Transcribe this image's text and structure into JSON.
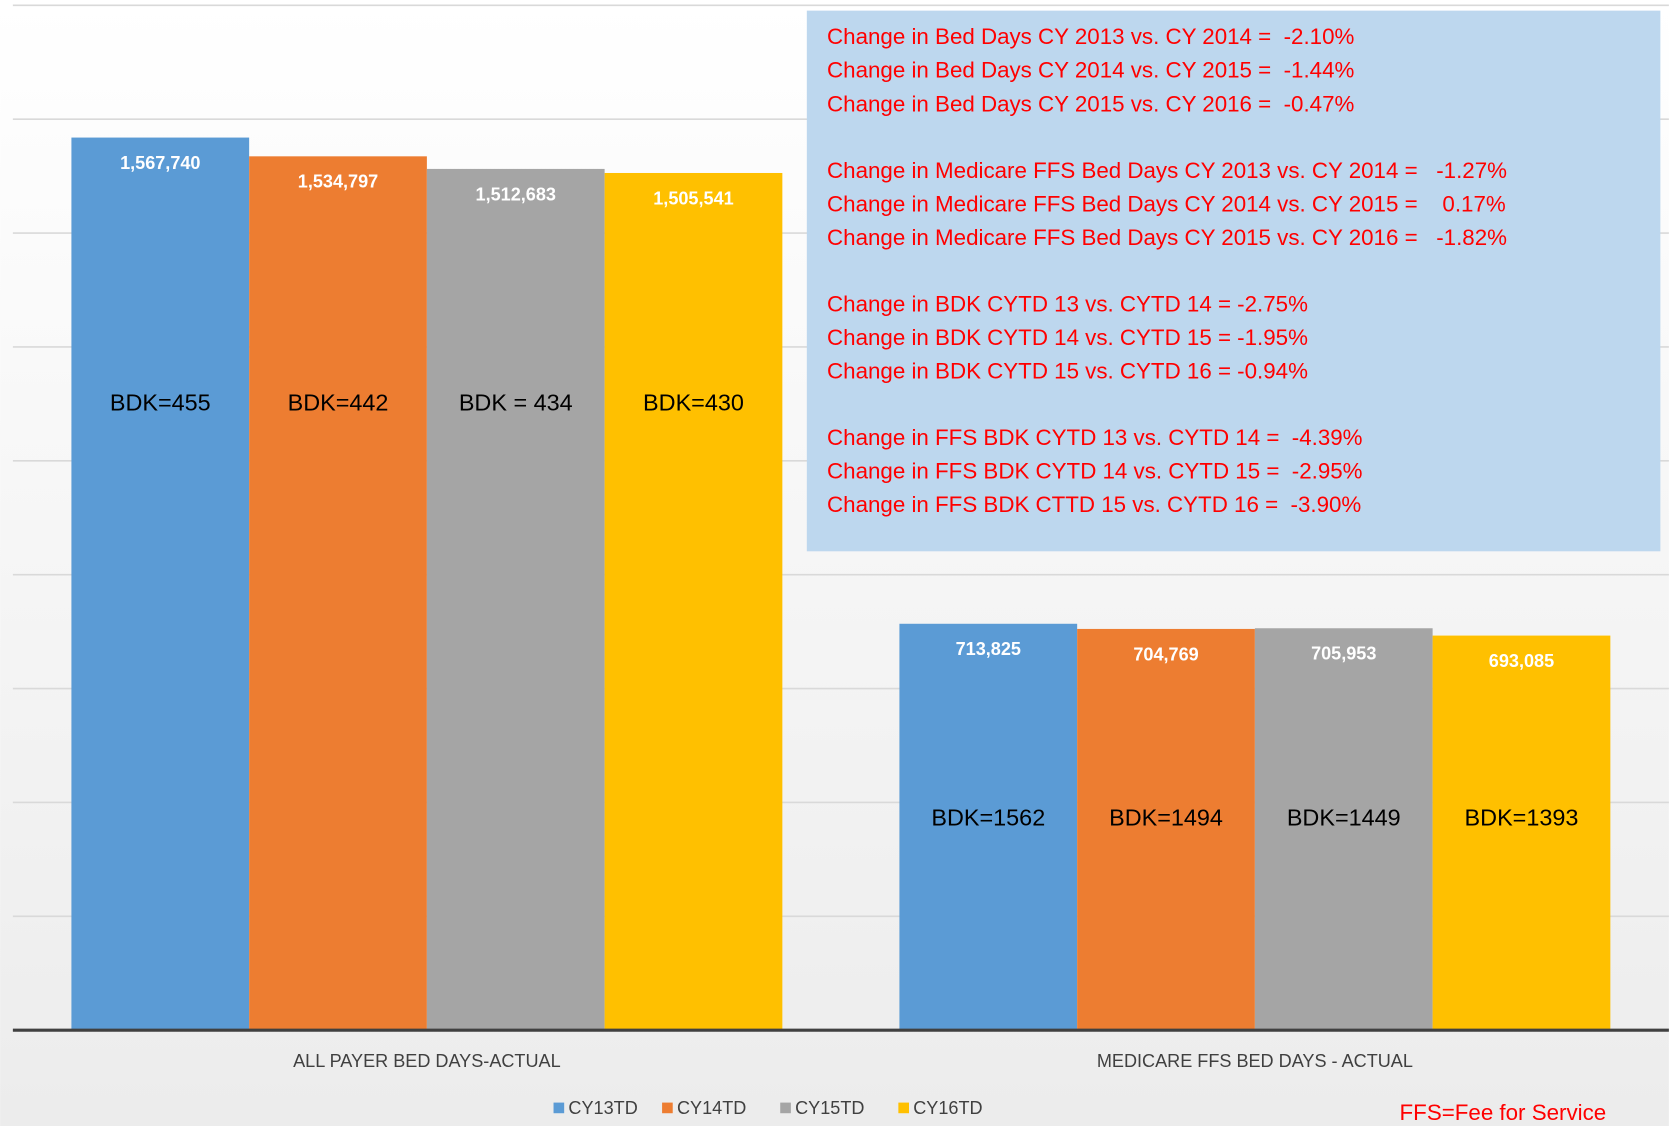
{
  "chart_data": {
    "type": "bar",
    "categories": [
      "ALL PAYER BED DAYS-ACTUAL",
      "MEDICARE FFS BED DAYS - ACTUAL"
    ],
    "series": [
      {
        "name": "CY13TD",
        "color": "#5b9bd5",
        "values": [
          1567740,
          713825
        ],
        "value_labels": [
          "1,567,740",
          "713,825"
        ],
        "annotations": [
          "BDK=455",
          "BDK=1562"
        ]
      },
      {
        "name": "CY14TD",
        "color": "#ed7d31",
        "values": [
          1534797,
          704769
        ],
        "value_labels": [
          "1,534,797",
          "704,769"
        ],
        "annotations": [
          "BDK=442",
          "BDK=1494"
        ]
      },
      {
        "name": "CY15TD",
        "color": "#a5a5a5",
        "values": [
          1512683,
          705953
        ],
        "value_labels": [
          "1,512,683",
          "705,953"
        ],
        "annotations": [
          "BDK = 434",
          "BDK=1449"
        ]
      },
      {
        "name": "CY16TD",
        "color": "#ffc000",
        "values": [
          1505541,
          693085
        ],
        "value_labels": [
          "1,505,541",
          "693,085"
        ],
        "annotations": [
          "BDK=430",
          "BDK=1393"
        ]
      }
    ],
    "ylim": [
      0,
      1800000
    ],
    "yticks": [
      0,
      200000,
      400000,
      600000,
      800000,
      1000000,
      1200000,
      1400000,
      1600000,
      1800000
    ],
    "grid": true,
    "legend": "bottom",
    "notes": [
      [
        "Change in Bed Days CY 2013 vs. CY 2014 =  -2.10%",
        "Change in Bed Days CY 2014 vs. CY 2015 =  -1.44%",
        "Change in Bed Days CY 2015 vs. CY 2016 =  -0.47%"
      ],
      [
        "Change in Medicare FFS Bed Days CY 2013 vs. CY 2014 =   -1.27%",
        "Change in Medicare FFS Bed Days CY 2014 vs. CY 2015 =    0.17%",
        "Change in Medicare FFS Bed Days CY 2015 vs. CY 2016 =   -1.82%"
      ],
      [
        "Change in BDK CYTD 13 vs. CYTD 14 = -2.75%",
        "Change in BDK CYTD 14 vs. CYTD 15 = -1.95%",
        "Change in BDK CYTD 15 vs. CYTD 16 = -0.94%"
      ],
      [
        "Change in FFS BDK CYTD 13 vs. CYTD 14 =  -4.39%",
        "Change in FFS BDK CYTD 14 vs. CYTD 15 =  -2.95%",
        "Change in FFS BDK CTTD 15 vs. CYTD 16 =  -3.90%"
      ]
    ],
    "footnote": "FFS=Fee for Service"
  }
}
